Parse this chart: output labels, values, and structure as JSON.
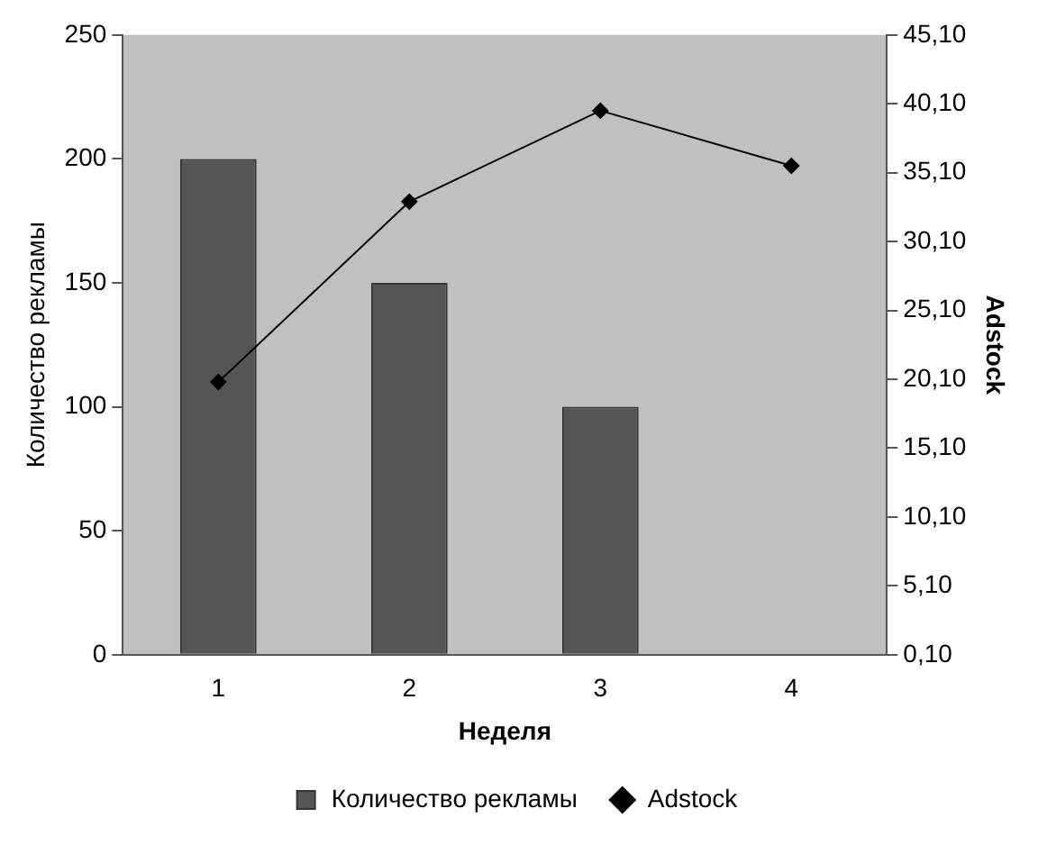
{
  "chart_data": {
    "type": "bar",
    "categories": [
      "1",
      "2",
      "3",
      "4"
    ],
    "xlabel": "Неделя",
    "ylabel": "Количество рекламы",
    "y2label": "Adstock",
    "series": [
      {
        "name": "Количество рекламы",
        "color": "#555555",
        "values": [
          200,
          150,
          100,
          null
        ]
      },
      {
        "name": "Adstock",
        "type": "line",
        "axis": "y2",
        "color": "#000000",
        "marker": "diamond",
        "values": [
          19.9,
          33.0,
          39.6,
          35.6
        ]
      }
    ],
    "ylim": [
      0,
      250
    ],
    "yticks": [
      0,
      50,
      100,
      150,
      200,
      250
    ],
    "y2lim": [
      0.1,
      45.1
    ],
    "y2ticks": [
      {
        "value": 0.1,
        "label": "0,10"
      },
      {
        "value": 5.1,
        "label": "5,10"
      },
      {
        "value": 10.1,
        "label": "10,10"
      },
      {
        "value": 15.1,
        "label": "15,10"
      },
      {
        "value": 20.1,
        "label": "20,10"
      },
      {
        "value": 25.1,
        "label": "25,10"
      },
      {
        "value": 30.1,
        "label": "30,10"
      },
      {
        "value": 35.1,
        "label": "35,10"
      },
      {
        "value": 40.1,
        "label": "40,10"
      },
      {
        "value": 45.1,
        "label": "45,10"
      }
    ],
    "grid": false,
    "legend": "bottom"
  }
}
